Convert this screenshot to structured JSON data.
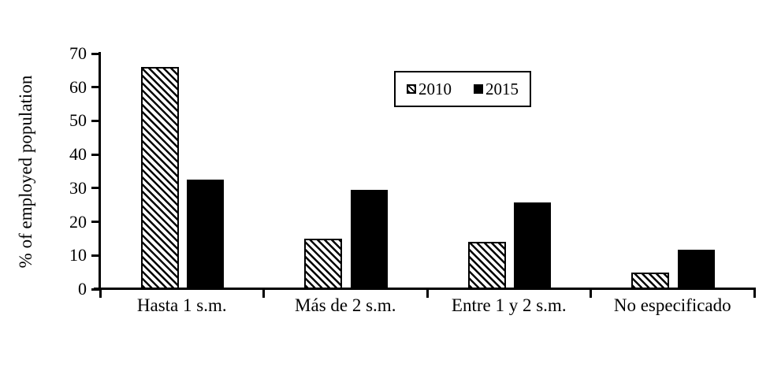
{
  "figure": {
    "background": "#ffffff",
    "foreground": "#000000"
  },
  "chart_data": {
    "type": "bar",
    "categories": [
      "Hasta 1 s.m.",
      "Más de 2 s.m.",
      "Entre 1 y 2 s.m.",
      "No especificado"
    ],
    "series": [
      {
        "name": "2010",
        "fill": "hatched",
        "values": [
          66,
          15,
          14,
          5
        ]
      },
      {
        "name": "2015",
        "fill": "solid",
        "values": [
          32.5,
          29.5,
          25.7,
          11.8
        ]
      }
    ],
    "xlabel": "",
    "ylabel": "% of employed population",
    "ylim": [
      0,
      70
    ],
    "yticks": [
      0,
      10,
      20,
      30,
      40,
      50,
      60,
      70
    ],
    "grid": false,
    "legend_position": "top-center",
    "colors": {
      "foreground": "#000000",
      "background": "#ffffff"
    }
  }
}
